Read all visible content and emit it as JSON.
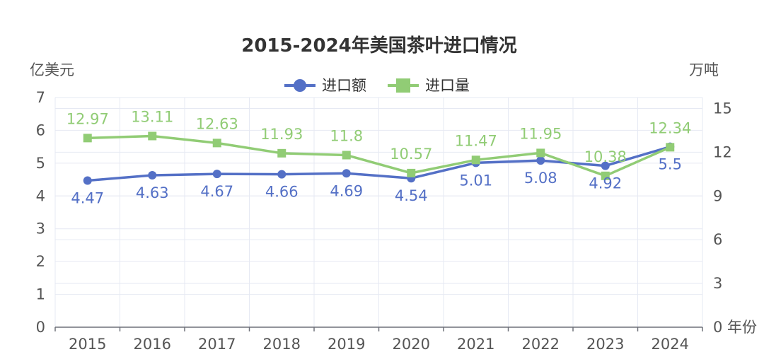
{
  "chart_data": {
    "type": "line",
    "title": "2015-2024年美国茶叶进口情况",
    "y_left_label": "亿美元",
    "y_right_label": "万吨",
    "x_unit_label": "年份",
    "categories": [
      "2015",
      "2016",
      "2017",
      "2018",
      "2019",
      "2020",
      "2021",
      "2022",
      "2023",
      "2024"
    ],
    "y_left_ticks": [
      "0",
      "1",
      "2",
      "3",
      "4",
      "5",
      "6",
      "7"
    ],
    "y_right_ticks": [
      "0",
      "3",
      "6",
      "9",
      "12",
      "15"
    ],
    "y_left_range": [
      0,
      7
    ],
    "y_right_range": [
      0,
      15.75
    ],
    "grid": true,
    "legend_position": "top-center",
    "series": [
      {
        "name": "进口额",
        "axis": "left",
        "color": "#5470c6",
        "marker": "circle",
        "values": [
          4.47,
          4.63,
          4.67,
          4.66,
          4.69,
          4.54,
          5.01,
          5.08,
          4.92,
          5.5
        ],
        "labels": [
          "4.47",
          "4.63",
          "4.67",
          "4.66",
          "4.69",
          "4.54",
          "5.01",
          "5.08",
          "4.92",
          "5.5"
        ]
      },
      {
        "name": "进口量",
        "axis": "right",
        "color": "#91cc75",
        "marker": "square",
        "values": [
          12.97,
          13.11,
          12.63,
          11.93,
          11.8,
          10.57,
          11.47,
          11.95,
          10.38,
          12.34
        ],
        "labels": [
          "12.97",
          "13.11",
          "12.63",
          "11.93",
          "11.8",
          "10.57",
          "11.47",
          "11.95",
          "10.38",
          "12.34"
        ]
      }
    ]
  }
}
